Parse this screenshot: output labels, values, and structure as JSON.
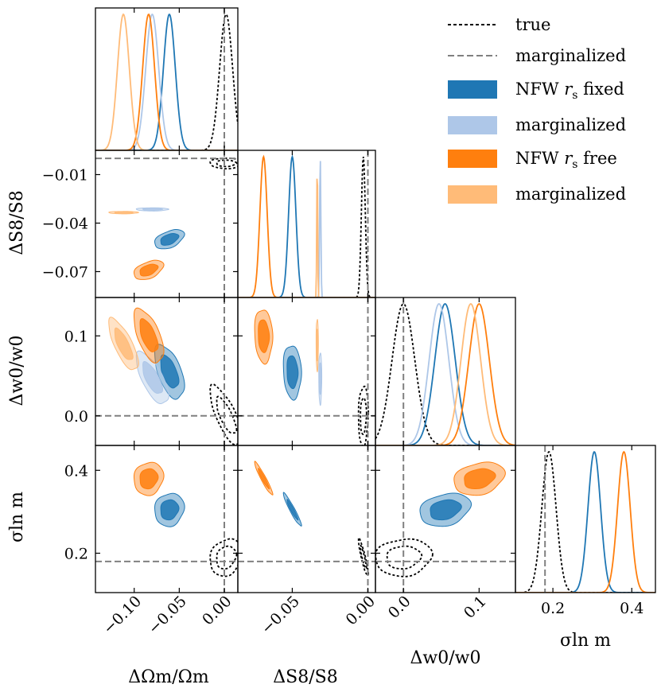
{
  "legend": [
    {
      "id": "true",
      "label": "true",
      "kind": "line",
      "style": "dotted",
      "color": "#000000"
    },
    {
      "id": "marg_dash",
      "label": "marginalized",
      "kind": "line",
      "style": "dashed",
      "color": "#808080"
    },
    {
      "id": "nfw_fixed",
      "label": "NFW r_s fixed",
      "kind": "patch",
      "color": "#1f77b4"
    },
    {
      "id": "nfw_fixed_marg",
      "label": "marginalized",
      "kind": "patch",
      "color": "#aec7e8"
    },
    {
      "id": "nfw_free",
      "label": "NFW r_s free",
      "kind": "patch",
      "color": "#ff7f0e"
    },
    {
      "id": "nfw_free_marg",
      "label": "marginalized",
      "kind": "patch",
      "color": "#ffbb78"
    }
  ],
  "axis_labels": {
    "omega": "ΔΩm/Ωm",
    "s8": "ΔS8/S8",
    "w0": "Δw0/w0",
    "sigma": "σln m"
  },
  "chart_data": {
    "type": "corner",
    "parameters": [
      "ΔΩm/Ωm",
      "ΔS8/S8",
      "Δw0/w0",
      "σln m"
    ],
    "ranges": {
      "omega": [
        -0.143,
        0.015
      ],
      "s8": [
        -0.086,
        0.005
      ],
      "w0": [
        -0.037,
        0.148
      ],
      "sigma": [
        0.105,
        0.46
      ]
    },
    "ticks": {
      "omega": {
        "values": [
          -0.1,
          -0.05,
          0.0
        ],
        "labels": [
          "−0.10",
          "−0.05",
          "0.00"
        ]
      },
      "s8": {
        "values": [
          -0.05,
          0.0
        ],
        "labels": [
          "−0.05",
          "0.00"
        ]
      },
      "s8_y": {
        "values": [
          -0.01,
          -0.04,
          -0.07
        ],
        "labels": [
          "−0.01",
          "−0.04",
          "−0.07"
        ]
      },
      "w0": {
        "values": [
          0.0,
          0.1
        ],
        "labels": [
          "0.0",
          "0.1"
        ]
      },
      "sigma": {
        "values": [
          0.2,
          0.4
        ],
        "labels": [
          "0.2",
          "0.4"
        ]
      }
    },
    "reference_lines": {
      "omega": 0.0,
      "s8": 0.0,
      "w0": 0.0,
      "sigma": 0.18
    },
    "series": [
      {
        "id": "true",
        "color": "#000000",
        "style": "dotted",
        "contour": "unfilled",
        "mean": {
          "omega": 0.002,
          "s8": -0.003,
          "w0": 0.0,
          "sigma": 0.19
        },
        "sd": {
          "omega": 0.0072,
          "s8": 0.0013,
          "w0": 0.015,
          "sigma": 0.018
        },
        "corr": {
          "omega_s8": 0.0,
          "omega_w0": -0.75,
          "omega_sigma": 0.2,
          "s8_w0": 0.1,
          "s8_sigma": -0.9,
          "w0_sigma": 0.1
        }
      },
      {
        "id": "marg_dash",
        "color": "#808080",
        "style": "dashed",
        "contour": "none",
        "mean": {
          "omega": 0.0,
          "w0": 0.0,
          "sigma": 0.18
        },
        "sd": {
          "omega": 0.0072,
          "w0": 0.015,
          "sigma": 0.018
        }
      },
      {
        "id": "nfw_fixed",
        "color": "#1f77b4",
        "style": "solid",
        "contour": "filled",
        "mean": {
          "omega": -0.061,
          "s8": -0.05,
          "w0": 0.055,
          "sigma": 0.305
        },
        "sd": {
          "omega": 0.0066,
          "s8": 0.0024,
          "w0": 0.0135,
          "sigma": 0.016
        },
        "corr": {
          "omega_s8": 0.45,
          "omega_w0": -0.55,
          "omega_sigma": 0.1,
          "s8_w0": -0.1,
          "s8_sigma": -0.95,
          "w0_sigma": 0.25
        }
      },
      {
        "id": "nfw_fixed_marg",
        "color": "#aec7e8",
        "style": "solid",
        "contour": "filled",
        "mean": {
          "omega": -0.08,
          "s8": -0.0315,
          "w0": 0.047
        },
        "sd": {
          "omega": 0.0072,
          "s8": 0.0004,
          "w0": 0.013
        },
        "corr": {
          "omega_s8": 0.0,
          "omega_w0": -0.7,
          "s8_w0": 0.0
        }
      },
      {
        "id": "nfw_free",
        "color": "#ff7f0e",
        "style": "solid",
        "contour": "filled",
        "mean": {
          "omega": -0.084,
          "s8": -0.069,
          "w0": 0.1,
          "sigma": 0.38
        },
        "sd": {
          "omega": 0.0066,
          "s8": 0.0024,
          "w0": 0.0135,
          "sigma": 0.016
        },
        "corr": {
          "omega_s8": 0.45,
          "omega_w0": -0.6,
          "omega_sigma": 0.1,
          "s8_w0": -0.1,
          "s8_sigma": -0.95,
          "w0_sigma": 0.25
        }
      },
      {
        "id": "nfw_free_marg",
        "color": "#ffbb78",
        "style": "solid",
        "contour": "filled",
        "mean": {
          "omega": -0.112,
          "s8": -0.0335,
          "w0": 0.089
        },
        "sd": {
          "omega": 0.0066,
          "s8": 0.0003,
          "w0": 0.013
        },
        "corr": {
          "omega_s8": 0.0,
          "omega_w0": -0.75,
          "s8_w0": 0.0
        }
      }
    ]
  }
}
